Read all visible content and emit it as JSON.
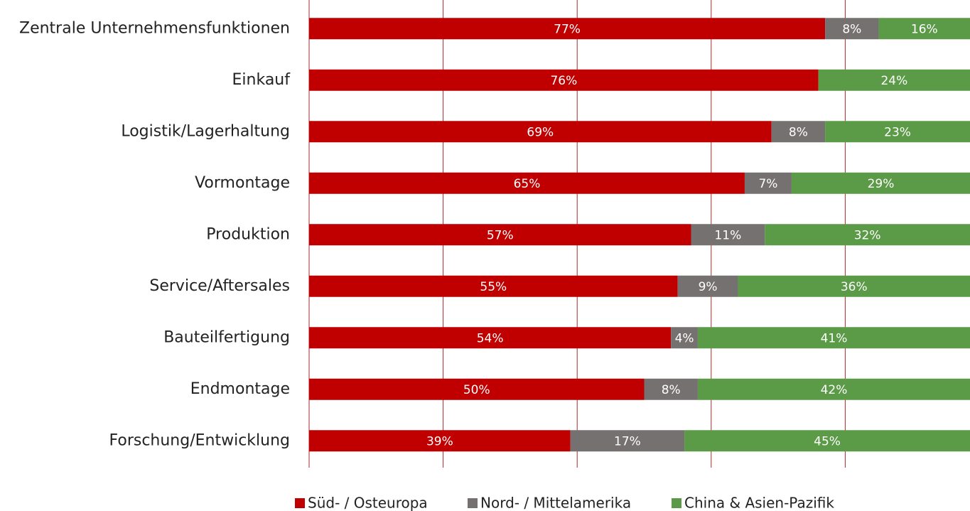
{
  "chart_data": {
    "type": "stacked-bar-horizontal",
    "categories": [
      "Zentrale Unternehmensfunktionen",
      "Einkauf",
      "Logistik/Lagerhaltung",
      "Vormontage",
      "Produktion",
      "Service/Aftersales",
      "Bauteilfertigung",
      "Endmontage",
      "Forschung/Entwicklung"
    ],
    "series": [
      {
        "name": "Süd- / Osteuropa",
        "color": "#c00000",
        "values": [
          77,
          76,
          69,
          65,
          57,
          55,
          54,
          50,
          39
        ],
        "value_labels": [
          "77%",
          "76%",
          "69%",
          "65%",
          "57%",
          "55%",
          "54%",
          "50%",
          "39%"
        ]
      },
      {
        "name": "Nord- / Mittelamerika",
        "color": "#767171",
        "values": [
          8,
          null,
          8,
          7,
          11,
          9,
          4,
          8,
          17
        ],
        "value_labels": [
          "8%",
          null,
          "8%",
          "7%",
          "11%",
          "9%",
          "4%",
          "8%",
          "17%"
        ]
      },
      {
        "name": "China & Asien-Pazifik",
        "color": "#5b9b47",
        "values": [
          16,
          24,
          23,
          29,
          32,
          36,
          41,
          42,
          45
        ],
        "value_labels": [
          "16%",
          "24%",
          "23%",
          "29%",
          "32%",
          "36%",
          "41%",
          "42%",
          "45%"
        ]
      }
    ],
    "xlim": [
      0,
      100
    ],
    "xticks": [
      0,
      20,
      40,
      60,
      80
    ],
    "grid": true,
    "legend": "bottom"
  }
}
